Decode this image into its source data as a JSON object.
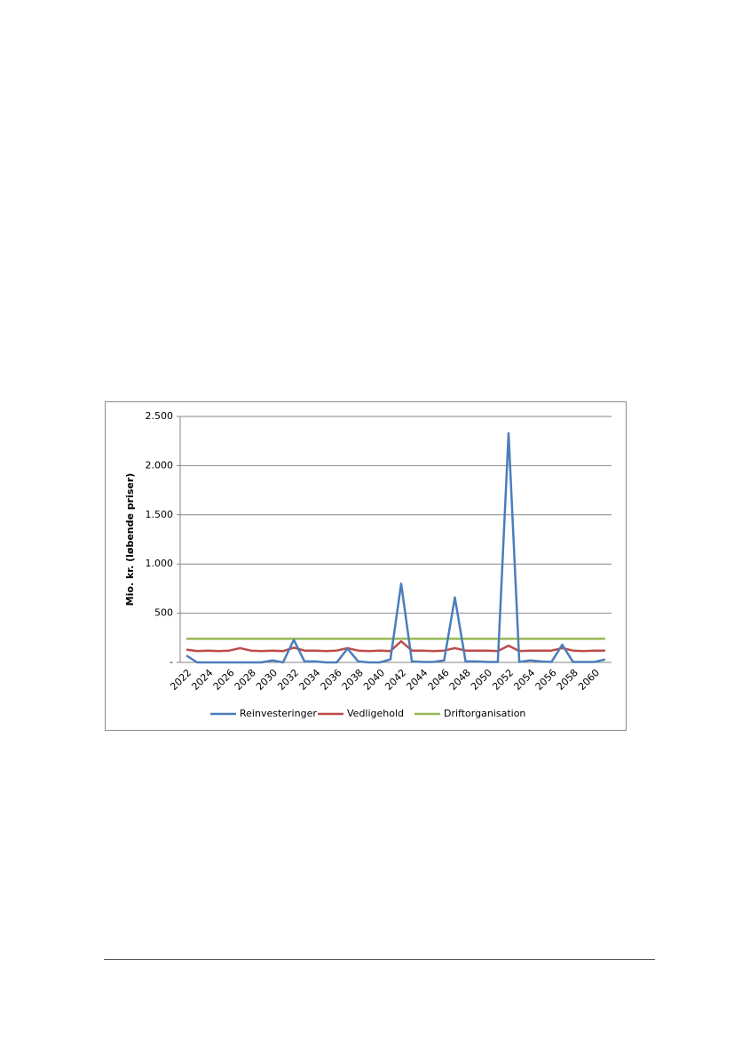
{
  "chart_data": {
    "type": "line",
    "y_label": "Mio. kr. (løbende priser)",
    "categories": [
      "2022",
      null,
      "2024",
      null,
      "2026",
      null,
      "2028",
      null,
      "2030",
      null,
      "2032",
      null,
      "2034",
      null,
      "2036",
      null,
      "2038",
      null,
      "2040",
      null,
      "2042",
      null,
      "2044",
      null,
      "2046",
      null,
      "2048",
      null,
      "2050",
      null,
      "2052",
      null,
      "2054",
      null,
      "2056",
      null,
      "2058",
      null,
      "2060",
      null
    ],
    "series": [
      {
        "name": "Reinvesteringer",
        "color": "#4a7ebb",
        "values": [
          70,
          0,
          0,
          0,
          0,
          0,
          0,
          0,
          20,
          0,
          230,
          10,
          10,
          0,
          0,
          140,
          10,
          0,
          0,
          30,
          800,
          10,
          5,
          5,
          20,
          660,
          10,
          10,
          5,
          5,
          2330,
          5,
          20,
          10,
          5,
          180,
          5,
          5,
          5,
          30
        ]
      },
      {
        "name": "Vedligehold",
        "color": "#be4b48",
        "values": [
          130,
          115,
          120,
          115,
          120,
          145,
          120,
          115,
          120,
          115,
          150,
          120,
          120,
          115,
          120,
          145,
          120,
          115,
          120,
          115,
          215,
          120,
          120,
          115,
          120,
          145,
          120,
          120,
          120,
          115,
          170,
          115,
          120,
          120,
          120,
          145,
          120,
          115,
          120,
          120
        ]
      },
      {
        "name": "Driftorganisation",
        "color": "#98b954",
        "values": [
          240,
          240,
          240,
          240,
          240,
          240,
          240,
          240,
          240,
          240,
          240,
          240,
          240,
          240,
          240,
          240,
          240,
          240,
          240,
          240,
          240,
          240,
          240,
          240,
          240,
          240,
          240,
          240,
          240,
          240,
          240,
          240,
          240,
          240,
          240,
          240,
          240,
          240,
          240,
          240
        ]
      }
    ],
    "ylim": [
      0,
      2500
    ],
    "yticks": [
      {
        "value": 0,
        "label": "-"
      },
      500,
      {
        "value": 1000,
        "label": "1.000"
      },
      {
        "value": 1500,
        "label": "1.500"
      },
      {
        "value": 2000,
        "label": "2.000"
      },
      {
        "value": 2500,
        "label": "2.500"
      }
    ],
    "grid": true
  }
}
